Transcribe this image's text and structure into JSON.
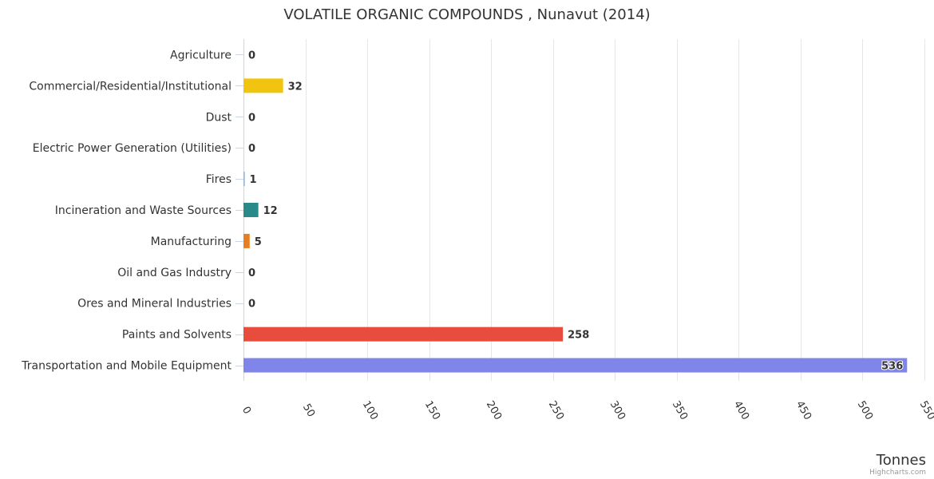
{
  "chart_data": {
    "type": "bar",
    "orientation": "horizontal",
    "title": "VOLATILE ORGANIC COMPOUNDS , Nunavut (2014)",
    "xlabel": "Tonnes",
    "ylabel": "",
    "xlim": [
      0,
      550
    ],
    "tick_step": 50,
    "ticks": [
      0,
      50,
      100,
      150,
      200,
      250,
      300,
      350,
      400,
      450,
      500,
      550
    ],
    "grid": true,
    "categories": [
      "Agriculture",
      "Commercial/Residential/Institutional",
      "Dust",
      "Electric Power Generation (Utilities)",
      "Fires",
      "Incineration and Waste Sources",
      "Manufacturing",
      "Oil and Gas Industry",
      "Ores and Mineral Industries",
      "Paints and Solvents",
      "Transportation and Mobile Equipment"
    ],
    "values": [
      0,
      32,
      0,
      0,
      1,
      12,
      5,
      0,
      0,
      258,
      536
    ],
    "colors": [
      "#7cb5ec",
      "#f1c40f",
      "#7cb5ec",
      "#7cb5ec",
      "#7cb5ec",
      "#2a8a8a",
      "#e67e22",
      "#7cb5ec",
      "#7cb5ec",
      "#e74c3c",
      "#8085e9"
    ],
    "data_labels": [
      "0",
      "32",
      "0",
      "0",
      "1",
      "12",
      "5",
      "0",
      "0",
      "258",
      "536"
    ]
  },
  "credits": "Highcharts.com"
}
